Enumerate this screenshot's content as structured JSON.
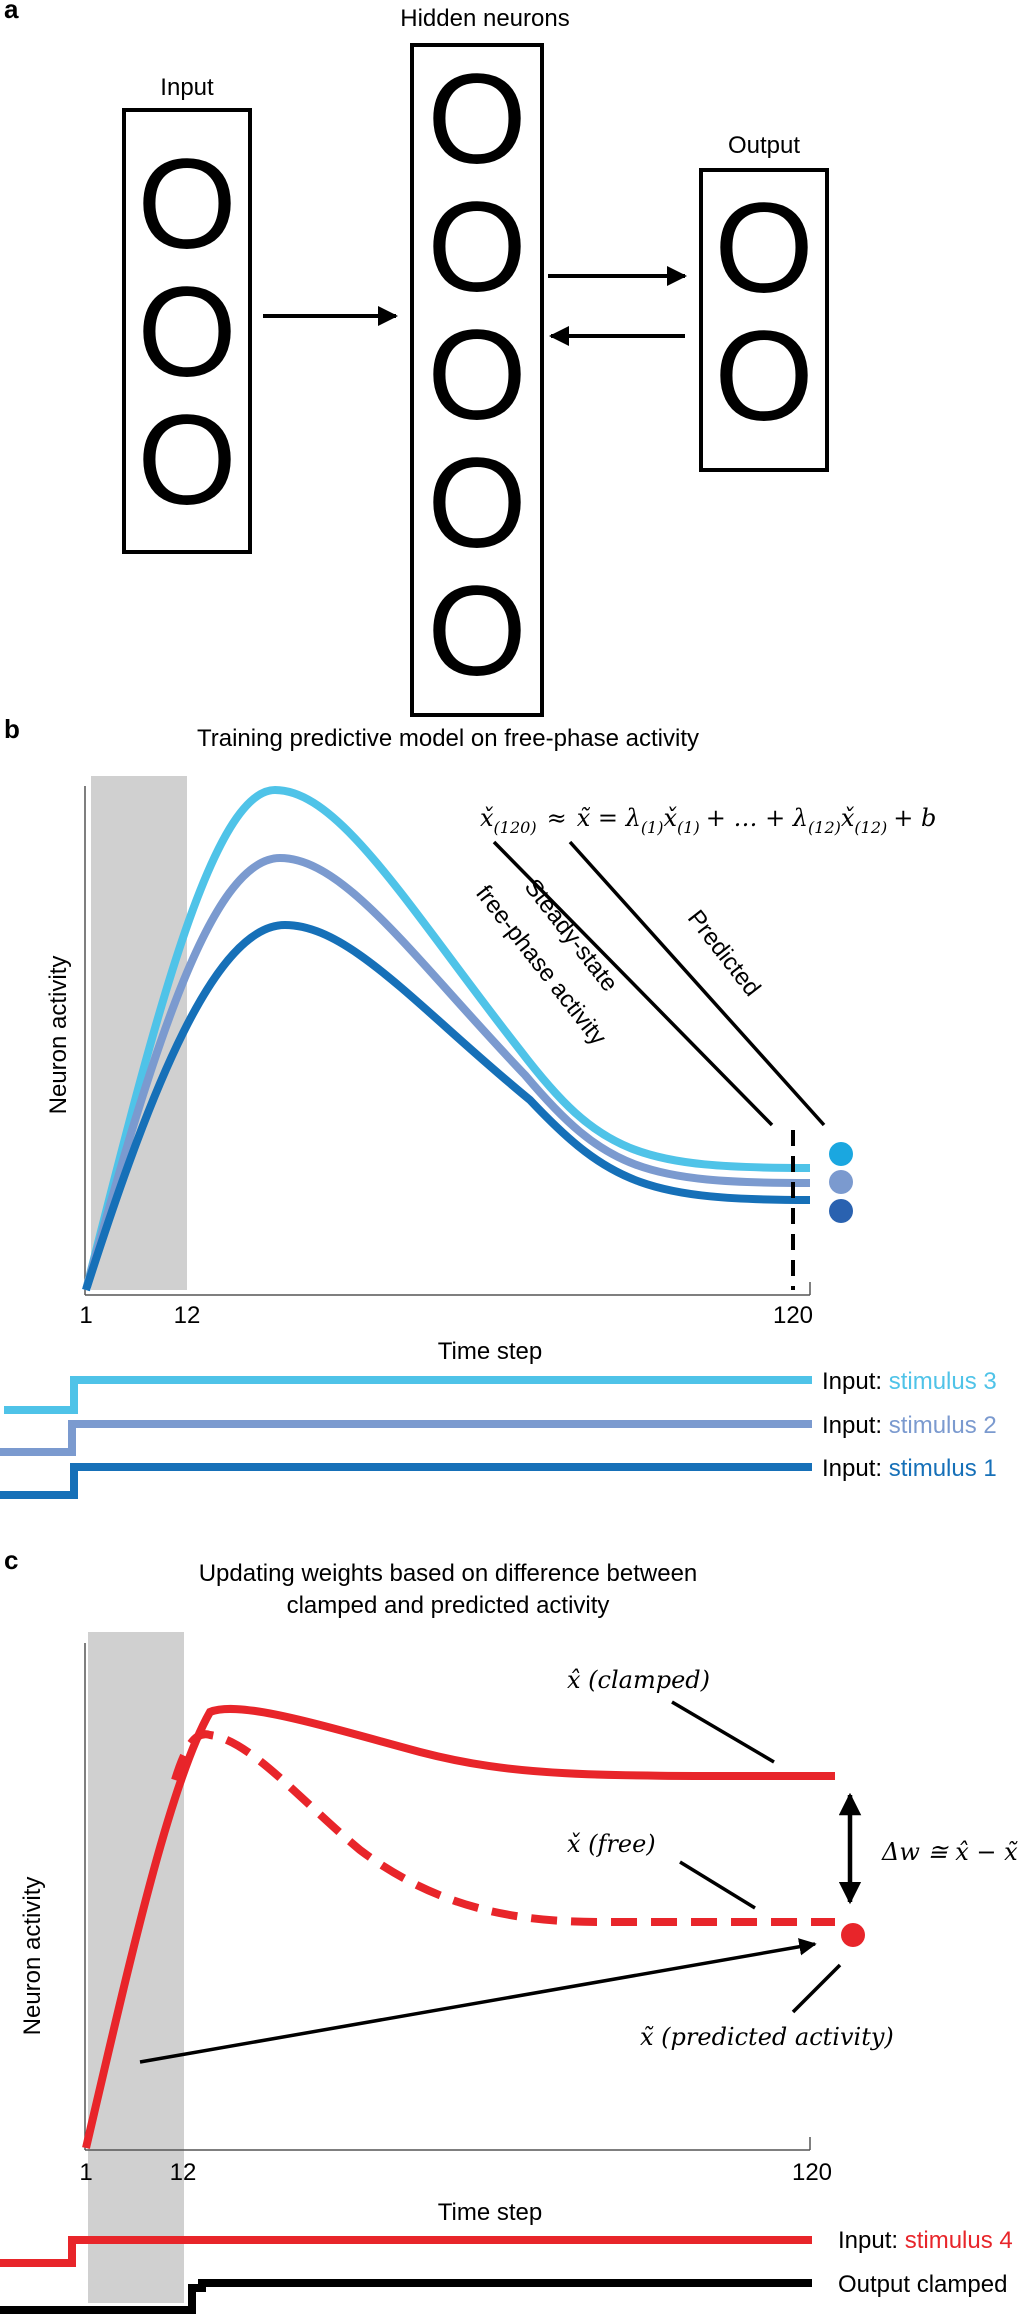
{
  "panel_a": {
    "letter": "a",
    "input_label": "Input",
    "hidden_label": "Hidden neurons",
    "output_label": "Output",
    "neuron_glyph": "O",
    "input_count": 3,
    "hidden_count": 5,
    "output_count": 2
  },
  "panel_b": {
    "letter": "b",
    "title": "Training predictive model on free-phase activity",
    "ylabel": "Neuron activity",
    "xlabel": "Time step",
    "ticks": [
      "1",
      "12",
      "120"
    ],
    "equation": {
      "lhs": "x̌",
      "lhs_sub": "(120)",
      "approx": "≈",
      "rhs": "x̃ = λ",
      "term1_sub": "(1)",
      "term1_x": "x̌",
      "term1_x_sub": "(1)",
      "middle": "+ … + λ",
      "term2_sub": "(12)",
      "term2_x": "x̌",
      "term2_x_sub": "(12)",
      "tail": "+ b"
    },
    "annotation_steady_1": "Steady-state",
    "annotation_steady_2": "free-phase activity",
    "annotation_predicted": "Predicted",
    "input_prefix": "Input: ",
    "stimuli": [
      {
        "name": "stimulus 3",
        "color": "#4FC3E8"
      },
      {
        "name": "stimulus 2",
        "color": "#7B9ACF"
      },
      {
        "name": "stimulus 1",
        "color": "#1670B8"
      }
    ],
    "dot_colors": [
      "#1AA7E0",
      "#7B9ACF",
      "#2A62B0"
    ]
  },
  "panel_c": {
    "letter": "c",
    "title_line1": "Updating weights based on difference between",
    "title_line2": "clamped and predicted activity",
    "ylabel": "Neuron activity",
    "xlabel": "Time step",
    "ticks": [
      "1",
      "12",
      "120"
    ],
    "label_clamped": "x̂ (clamped)",
    "label_free": "x̌ (free)",
    "label_predicted": "x̃ (predicted activity)",
    "delta_w": "Δw ≅ x̂ − x̃",
    "input_prefix": "Input: ",
    "stimulus": "stimulus 4",
    "stimulus_color": "#E8252A",
    "output_clamped": "Output clamped"
  }
}
